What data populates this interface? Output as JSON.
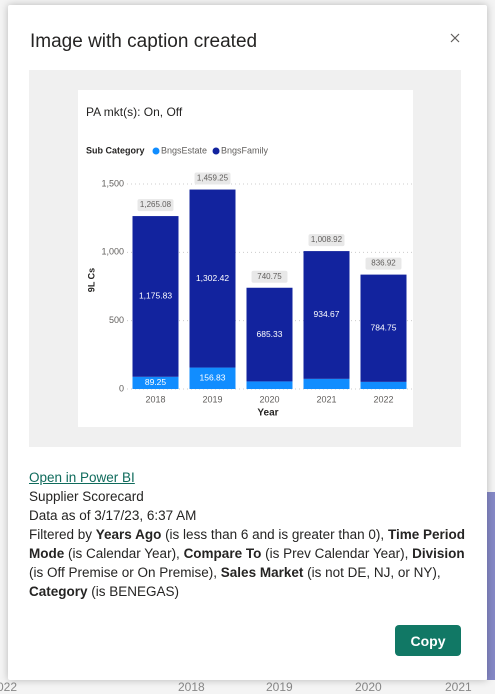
{
  "dialog": {
    "title": "Image with caption created",
    "link": "Open in Power BI",
    "report": "Supplier Scorecard",
    "data_as_of": "Data as of 3/17/23, 6:37 AM",
    "filters": [
      {
        "text": "Filtered by ",
        "bold": false
      },
      {
        "text": "Years Ago",
        "bold": true
      },
      {
        "text": " (is less than 6 and is greater than 0), ",
        "bold": false
      },
      {
        "text": "Time Period Mode",
        "bold": true
      },
      {
        "text": " (is Calendar Year), ",
        "bold": false
      },
      {
        "text": "Compare To",
        "bold": true
      },
      {
        "text": " (is Prev Calendar Year), ",
        "bold": false
      },
      {
        "text": "Division",
        "bold": true
      },
      {
        "text": " (is Off Premise or On Premise), ",
        "bold": false
      },
      {
        "text": "Sales Market",
        "bold": true
      },
      {
        "text": " (is not DE, NJ, or NY), ",
        "bold": false
      },
      {
        "text": "Category",
        "bold": true
      },
      {
        "text": " (is BENEGAS)",
        "bold": false
      }
    ],
    "button": "Copy"
  },
  "chart_data": {
    "type": "bar",
    "stacked": true,
    "title": "PA mkt(s): On, Off",
    "legend_title": "Sub Category",
    "categories": [
      "2018",
      "2019",
      "2020",
      "2021",
      "2022"
    ],
    "x_label": "Year",
    "y_label": "9L Cs",
    "ylim": [
      0,
      1600
    ],
    "yticks": [
      0,
      500,
      {
        "value": 1000,
        "label": "1,000"
      },
      {
        "value": 1500,
        "label": "1,500"
      }
    ],
    "grid": true,
    "series": [
      {
        "name": "BngsEstate",
        "color": "#118DFF",
        "values": [
          89.25,
          156.83,
          55.42,
          74.25,
          52.17
        ],
        "value_labels": [
          "89.25",
          "156.83",
          null,
          null,
          null
        ]
      },
      {
        "name": "BngsFamily",
        "color": "#12239E",
        "values": [
          1175.83,
          1302.42,
          685.33,
          934.67,
          784.75
        ],
        "value_labels": [
          "1,175.83",
          "1,302.42",
          "685.33",
          "934.67",
          "784.75"
        ]
      }
    ],
    "totals": {
      "values": [
        1265.08,
        1459.25,
        740.75,
        1008.92,
        836.92
      ],
      "labels": [
        "1,265.08",
        "1,459.25",
        "740.75",
        "1,008.92",
        "836.92"
      ]
    }
  },
  "background": {
    "labels": [
      "022",
      "2018",
      "2019",
      "2020",
      "2021"
    ]
  }
}
